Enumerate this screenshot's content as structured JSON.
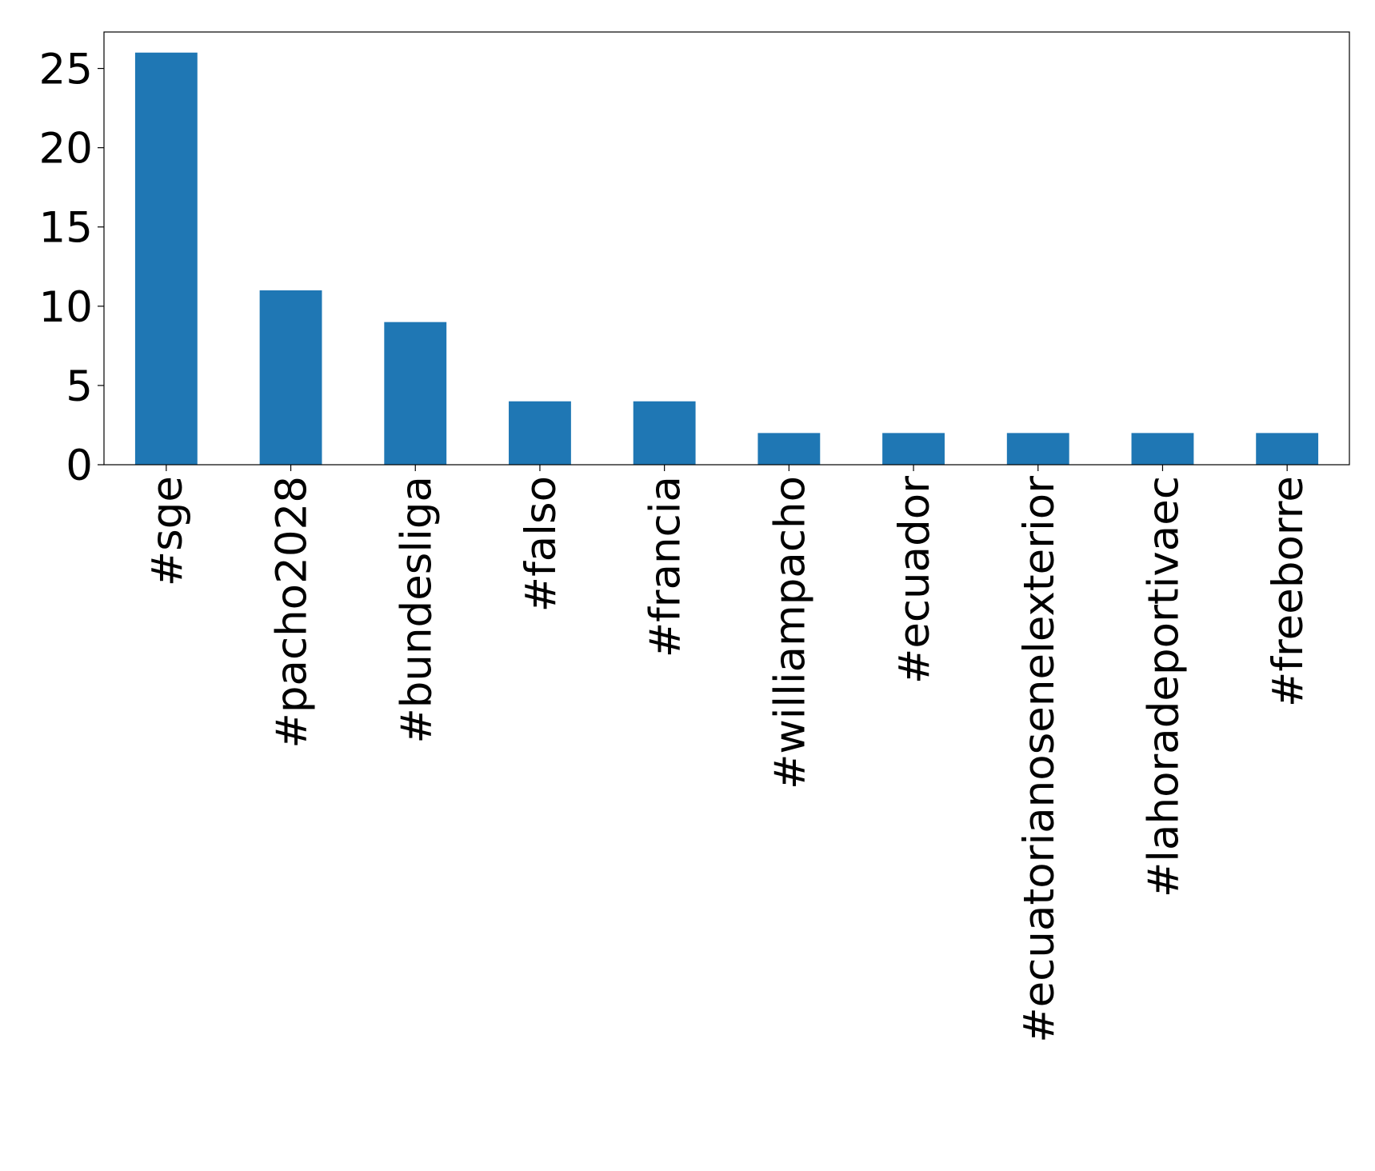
{
  "chart_data": {
    "type": "bar",
    "categories": [
      "#sge",
      "#pacho2028",
      "#bundesliga",
      "#falso",
      "#francia",
      "#williampacho",
      "#ecuador",
      "#ecuatorianosenelexterior",
      "#lahoradeportivaec",
      "#freeborre"
    ],
    "values": [
      26,
      11,
      9,
      4,
      4,
      2,
      2,
      2,
      2,
      2
    ],
    "color": "#1f77b4",
    "ylim": [
      0,
      27.3
    ],
    "yticks": [
      0,
      5,
      10,
      15,
      20,
      25
    ],
    "grid": false
  }
}
